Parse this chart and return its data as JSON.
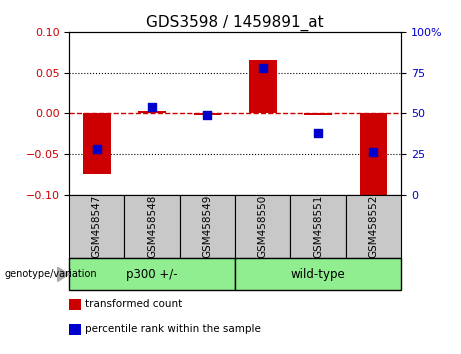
{
  "title": "GDS3598 / 1459891_at",
  "samples": [
    "GSM458547",
    "GSM458548",
    "GSM458549",
    "GSM458550",
    "GSM458551",
    "GSM458552"
  ],
  "group_labels": [
    "p300 +/-",
    "wild-type"
  ],
  "transformed_counts": [
    -0.075,
    0.003,
    -0.002,
    0.065,
    -0.002,
    -0.1
  ],
  "percentile_ranks": [
    28,
    54,
    49,
    78,
    38,
    26
  ],
  "ylim_left": [
    -0.1,
    0.1
  ],
  "ylim_right": [
    0,
    100
  ],
  "bar_color": "#cc0000",
  "dot_color": "#0000cc",
  "hline_color": "#cc0000",
  "yticks_left": [
    -0.1,
    -0.05,
    0.0,
    0.05,
    0.1
  ],
  "yticks_right": [
    0,
    25,
    50,
    75,
    100
  ],
  "bar_width": 0.5,
  "dot_size": 30,
  "group1_count": 3,
  "group2_count": 3,
  "legend_labels": [
    "transformed count",
    "percentile rank within the sample"
  ],
  "legend_colors": [
    "#cc0000",
    "#0000cc"
  ],
  "sample_box_color": "#c8c8c8",
  "group_box_color": "#90EE90",
  "tick_color_left": "#cc0000",
  "tick_color_right": "#0000cc",
  "title_fontsize": 11,
  "tick_fontsize": 8,
  "label_fontsize": 7.5,
  "legend_fontsize": 7.5,
  "group_fontsize": 8.5
}
